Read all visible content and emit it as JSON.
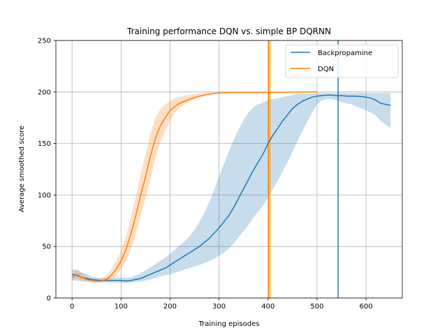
{
  "chart_data": {
    "type": "line",
    "title": "Training performance DQN vs. simple BP DQRNN",
    "xlabel": "Training episodes",
    "ylabel": "Average smoothed score",
    "xlim": [
      -33,
      674
    ],
    "ylim": [
      0,
      250
    ],
    "xticks": [
      0,
      100,
      200,
      300,
      400,
      500,
      600
    ],
    "yticks": [
      0,
      50,
      100,
      150,
      200,
      250
    ],
    "grid": true,
    "legend": "upper-right",
    "series": [
      {
        "name": "Backpropamine",
        "color": "#1f77b4",
        "x": [
          0,
          10,
          20,
          30,
          40,
          50,
          60,
          70,
          80,
          90,
          100,
          110,
          120,
          130,
          140,
          150,
          160,
          170,
          180,
          190,
          200,
          210,
          220,
          230,
          240,
          250,
          260,
          270,
          280,
          290,
          300,
          310,
          320,
          330,
          340,
          350,
          360,
          370,
          380,
          390,
          400,
          410,
          420,
          430,
          440,
          450,
          460,
          470,
          480,
          490,
          500,
          510,
          520,
          530,
          540,
          550,
          560,
          570,
          580,
          590,
          600,
          610,
          620,
          630,
          640,
          650
        ],
        "mean": [
          23,
          22,
          20,
          19,
          18,
          17.5,
          17,
          17,
          17,
          17,
          17,
          16.5,
          17,
          18,
          19,
          21,
          23,
          25,
          27,
          29,
          32,
          35,
          38,
          41,
          44,
          47,
          50,
          54,
          58,
          63,
          68,
          74,
          80,
          88,
          97,
          106,
          115,
          124,
          132,
          140,
          150,
          158,
          165,
          172,
          178,
          184,
          188,
          191,
          193,
          195,
          196,
          196.5,
          197,
          197,
          196.5,
          196.5,
          196,
          196,
          196,
          195.5,
          195,
          194,
          192,
          189,
          188,
          187
        ],
        "lower": [
          17,
          17,
          16,
          16,
          15.5,
          15,
          15,
          15,
          15,
          15,
          15,
          14.5,
          15,
          15.5,
          16,
          17,
          18,
          19.5,
          21,
          22,
          23,
          24.5,
          26,
          27.5,
          29,
          30.5,
          32,
          34,
          36,
          38,
          41,
          44,
          48,
          53,
          59,
          65,
          71,
          78,
          84,
          90,
          98,
          106,
          114,
          123,
          132,
          142,
          152,
          162,
          171,
          180,
          188,
          192,
          193,
          193,
          192,
          190,
          189,
          188,
          186,
          184,
          182,
          180,
          177,
          172,
          168,
          165
        ],
        "upper": [
          28,
          27,
          25,
          23,
          21,
          20,
          19.5,
          19.5,
          20,
          20,
          20,
          19.5,
          20,
          22,
          24,
          27,
          30,
          33,
          36,
          39,
          43,
          47,
          51,
          55,
          60,
          66,
          74,
          83,
          93,
          105,
          118,
          130,
          142,
          154,
          164,
          173,
          180,
          185,
          188,
          190,
          192,
          193,
          194,
          195,
          196,
          197,
          198,
          198,
          198.5,
          198.5,
          199,
          199,
          199,
          199,
          199,
          199,
          199,
          199,
          199,
          199,
          199,
          199,
          199,
          199,
          199,
          199
        ]
      },
      {
        "name": "DQN",
        "color": "#ff7f0e",
        "x": [
          0,
          10,
          20,
          30,
          40,
          50,
          60,
          70,
          80,
          90,
          100,
          110,
          120,
          130,
          140,
          150,
          160,
          170,
          180,
          190,
          200,
          210,
          220,
          230,
          240,
          250,
          260,
          270,
          280,
          290,
          300,
          310,
          320,
          330,
          340,
          350,
          360,
          370,
          380,
          390,
          400,
          410,
          420,
          430,
          440,
          450,
          460,
          470,
          480,
          490,
          500
        ],
        "mean": [
          20,
          23,
          20,
          18,
          17,
          16.5,
          16.5,
          18,
          22,
          28,
          36,
          47,
          62,
          80,
          100,
          118,
          138,
          155,
          167,
          175,
          182,
          186,
          189,
          191,
          193,
          194.5,
          196,
          197,
          198,
          198.5,
          199,
          199.3,
          199.5,
          199.6,
          199.6,
          199.6,
          199.6,
          199.6,
          199.6,
          199.6,
          199.7,
          199.7,
          199.8,
          199.8,
          199.8,
          199.9,
          199.9,
          199.9,
          200,
          200,
          200
        ],
        "lower": [
          17,
          19,
          17,
          16,
          15.5,
          15.5,
          15.5,
          16,
          18,
          22,
          28,
          36,
          47,
          62,
          80,
          97,
          115,
          135,
          150,
          162,
          172,
          180,
          185,
          188,
          191,
          193,
          194.5,
          196,
          197,
          198,
          198.5,
          199,
          199.2,
          199.3,
          199.3,
          199.3,
          199.3,
          199.3,
          199.3,
          199.3,
          199.4,
          199.4,
          199.5,
          199.5,
          199.5,
          199.6,
          199.6,
          199.6,
          199.7,
          199.7,
          199.7
        ],
        "upper": [
          24,
          28,
          24,
          21,
          19,
          18,
          19,
          22,
          28,
          36,
          46,
          60,
          78,
          98,
          120,
          140,
          160,
          175,
          183,
          188,
          191,
          194,
          195.5,
          196.5,
          197.5,
          198,
          198.5,
          199,
          199.3,
          199.5,
          199.7,
          199.8,
          199.9,
          200,
          200,
          200,
          200,
          200,
          200,
          200,
          200,
          200,
          200,
          200,
          200,
          200,
          200,
          200,
          200.2,
          200.2,
          200.2
        ]
      }
    ],
    "vlines": [
      {
        "x": 401,
        "color": "#ff7f0e"
      },
      {
        "x": 404,
        "color": "#ffb000"
      },
      {
        "x": 543,
        "color": "#1f77b4"
      }
    ]
  }
}
